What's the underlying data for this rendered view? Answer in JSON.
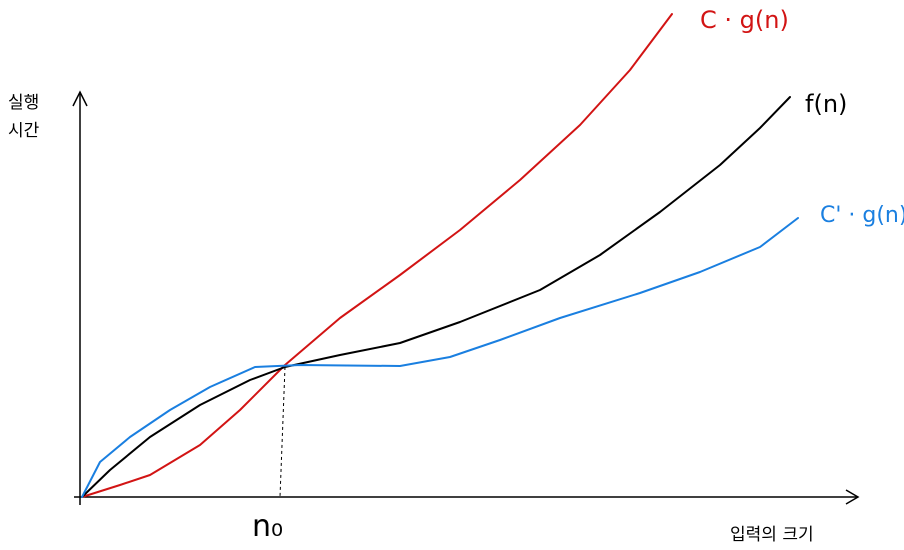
{
  "y_axis_label": [
    "실행",
    "시간"
  ],
  "x_axis_label": "입력의 크기",
  "n0_label": "n₀",
  "curves": [
    {
      "label": "C · g(n)"
    },
    {
      "label": "f(n)"
    },
    {
      "label": "C' · g(n)"
    }
  ]
}
